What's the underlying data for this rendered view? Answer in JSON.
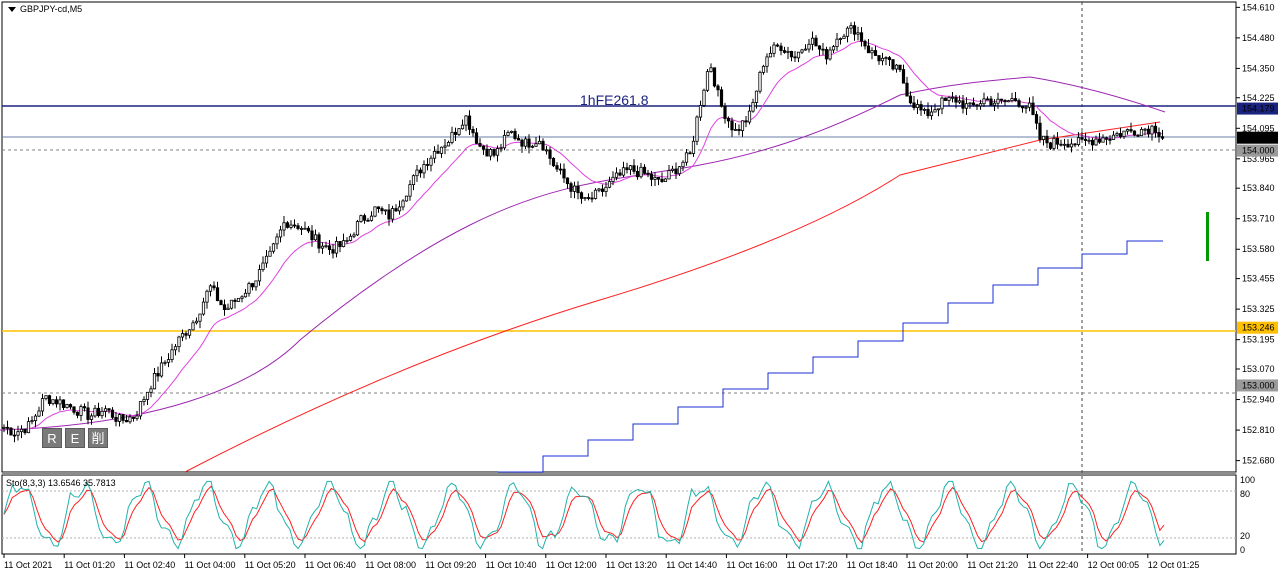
{
  "window": {
    "symbol_title": "GBPJPY-cd,M5",
    "fib_label": "1hFE261.8",
    "buttons": [
      "R",
      "E",
      "削"
    ]
  },
  "colors": {
    "candles": "#000000",
    "ma_fast": "#e040e0",
    "ma_mid": "#9c27b0",
    "ma_slow": "#ff2020",
    "step_line": "#1a2fd6",
    "fib_line": "#1a237e",
    "level_line": "#ffc000",
    "sto_main": "#20b2aa",
    "sto_signal": "#ff2020",
    "current_price_bg": "#1a237e",
    "green_marker": "#009900"
  },
  "chart_data": {
    "type": "line",
    "title": "GBPJPY-cd,M5",
    "price_axis": {
      "ylim": [
        152.64,
        154.62
      ],
      "tick_labels": [
        "154.610",
        "154.480",
        "154.350",
        "154.225",
        "154.095",
        "153.965",
        "153.840",
        "153.710",
        "153.580",
        "153.455",
        "153.325",
        "153.195",
        "153.070",
        "152.940",
        "152.810",
        "152.680"
      ]
    },
    "price_labels": [
      {
        "value": 154.179,
        "label": "154.179",
        "kind": "fib"
      },
      {
        "value": 154.055,
        "label": "154.055",
        "kind": "current"
      },
      {
        "value": 154.0,
        "label": "154.000",
        "kind": "dashed"
      },
      {
        "value": 153.246,
        "label": "153.246",
        "kind": "level"
      },
      {
        "value": 153.0,
        "label": "153.000",
        "kind": "dashed"
      }
    ],
    "time_labels": [
      "11 Oct 2021",
      "11 Oct 01:20",
      "11 Oct 02:40",
      "11 Oct 04:00",
      "11 Oct 05:20",
      "11 Oct 06:40",
      "11 Oct 08:00",
      "11 Oct 09:20",
      "11 Oct 10:40",
      "11 Oct 12:00",
      "11 Oct 13:20",
      "11 Oct 14:40",
      "11 Oct 16:00",
      "11 Oct 17:20",
      "11 Oct 18:40",
      "11 Oct 20:00",
      "11 Oct 21:20",
      "11 Oct 22:40",
      "12 Oct 00:05",
      "12 Oct 01:25"
    ],
    "close_path": [
      [
        0,
        152.83
      ],
      [
        15,
        152.8
      ],
      [
        30,
        152.83
      ],
      [
        45,
        152.95
      ],
      [
        60,
        152.93
      ],
      [
        75,
        152.9
      ],
      [
        90,
        152.87
      ],
      [
        105,
        152.9
      ],
      [
        120,
        152.85
      ],
      [
        135,
        152.87
      ],
      [
        150,
        153.0
      ],
      [
        165,
        153.1
      ],
      [
        180,
        153.2
      ],
      [
        195,
        153.28
      ],
      [
        210,
        153.42
      ],
      [
        225,
        153.32
      ],
      [
        240,
        153.38
      ],
      [
        255,
        153.45
      ],
      [
        270,
        153.55
      ],
      [
        285,
        153.7
      ],
      [
        300,
        153.68
      ],
      [
        315,
        153.62
      ],
      [
        330,
        153.58
      ],
      [
        345,
        153.6
      ],
      [
        360,
        153.7
      ],
      [
        375,
        153.75
      ],
      [
        390,
        153.72
      ],
      [
        405,
        153.82
      ],
      [
        420,
        153.92
      ],
      [
        435,
        154.0
      ],
      [
        450,
        154.05
      ],
      [
        465,
        154.15
      ],
      [
        480,
        154.02
      ],
      [
        495,
        153.98
      ],
      [
        510,
        154.08
      ],
      [
        525,
        154.03
      ],
      [
        540,
        154.05
      ],
      [
        555,
        153.93
      ],
      [
        570,
        153.85
      ],
      [
        585,
        153.78
      ],
      [
        600,
        153.82
      ],
      [
        615,
        153.88
      ],
      [
        630,
        153.92
      ],
      [
        645,
        153.9
      ],
      [
        660,
        153.86
      ],
      [
        675,
        153.92
      ],
      [
        690,
        153.98
      ],
      [
        700,
        154.2
      ],
      [
        710,
        154.38
      ],
      [
        720,
        154.2
      ],
      [
        735,
        154.08
      ],
      [
        750,
        154.15
      ],
      [
        765,
        154.4
      ],
      [
        780,
        154.45
      ],
      [
        795,
        154.4
      ],
      [
        810,
        154.48
      ],
      [
        825,
        154.4
      ],
      [
        840,
        154.5
      ],
      [
        855,
        154.52
      ],
      [
        870,
        154.42
      ],
      [
        885,
        154.38
      ],
      [
        900,
        154.33
      ],
      [
        910,
        154.22
      ],
      [
        925,
        154.15
      ],
      [
        940,
        154.2
      ],
      [
        955,
        154.22
      ],
      [
        970,
        154.18
      ],
      [
        985,
        154.22
      ],
      [
        1000,
        154.2
      ],
      [
        1015,
        154.22
      ],
      [
        1030,
        154.18
      ],
      [
        1040,
        154.05
      ],
      [
        1050,
        154.03
      ],
      [
        1065,
        154.04
      ],
      [
        1080,
        154.03
      ],
      [
        1095,
        154.05
      ],
      [
        1110,
        154.06
      ],
      [
        1125,
        154.08
      ],
      [
        1140,
        154.09
      ],
      [
        1155,
        154.1
      ],
      [
        1165,
        154.05
      ]
    ],
    "stochastic": {
      "label": "Sto(8,3,3) 13.6546 35.7813",
      "main": 13.6546,
      "signal": 35.7813,
      "ylim": [
        0,
        100
      ],
      "tick_labels": [
        "100",
        "80",
        "20",
        "0"
      ],
      "levels": [
        80,
        20
      ]
    }
  }
}
